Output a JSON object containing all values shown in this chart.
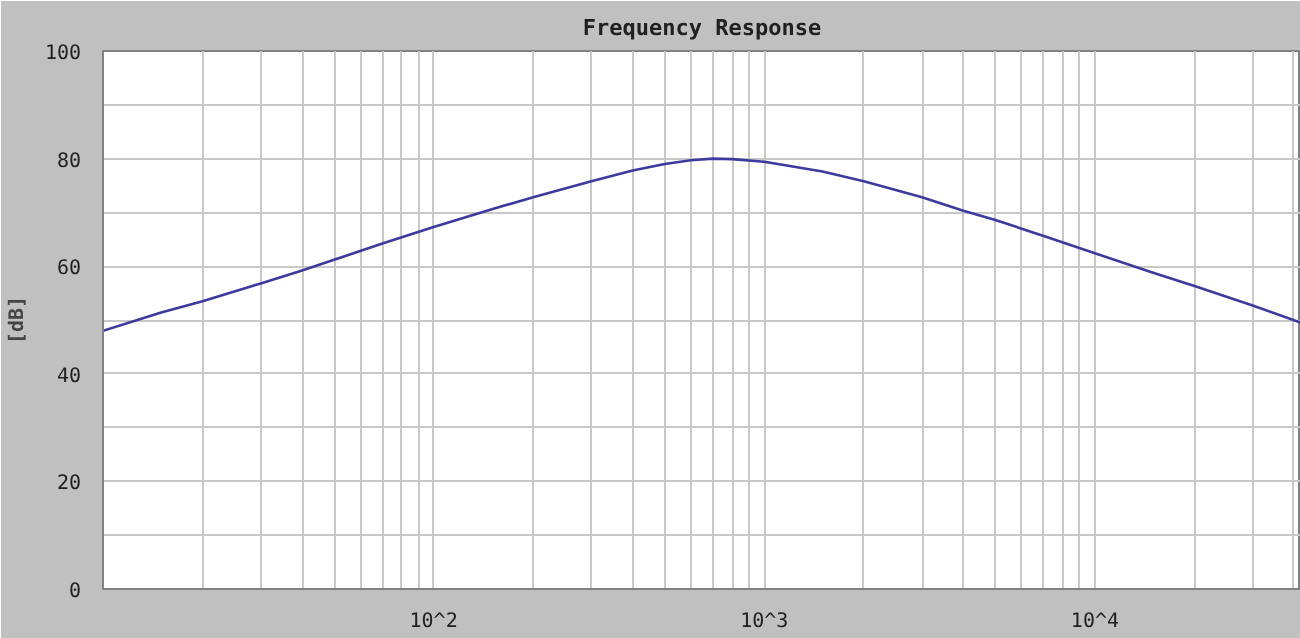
{
  "chart_data": {
    "type": "line",
    "title": "Frequency Response",
    "ylabel": "[dB]",
    "x": [
      10,
      15,
      20,
      30,
      40,
      50,
      70,
      100,
      150,
      200,
      300,
      400,
      500,
      600,
      700,
      800,
      1000,
      1500,
      2000,
      3000,
      4000,
      5000,
      7000,
      10000,
      15000,
      20000,
      30000,
      42000
    ],
    "series": [
      {
        "color": "#3b3b9e",
        "values": [
          48,
          51.4,
          53.5,
          56.8,
          59.2,
          61.2,
          64.2,
          67.3,
          70.6,
          72.8,
          75.8,
          77.8,
          79,
          79.7,
          80,
          79.9,
          79.4,
          77.6,
          75.8,
          72.8,
          70.3,
          68.6,
          65.6,
          62.4,
          58.8,
          56.3,
          52.7,
          49.5
        ]
      }
    ],
    "log": "x",
    "xlim": [
      10,
      42000
    ],
    "xticks": [
      {
        "value": 20,
        "label": null
      },
      {
        "value": 30,
        "label": null
      },
      {
        "value": 40,
        "label": null
      },
      {
        "value": 50,
        "label": null
      },
      {
        "value": 60,
        "label": null
      },
      {
        "value": 70,
        "label": null
      },
      {
        "value": 80,
        "label": null
      },
      {
        "value": 90,
        "label": null
      },
      {
        "value": 100,
        "label": "10^2"
      },
      {
        "value": 200,
        "label": null
      },
      {
        "value": 300,
        "label": null
      },
      {
        "value": 400,
        "label": null
      },
      {
        "value": 500,
        "label": null
      },
      {
        "value": 600,
        "label": null
      },
      {
        "value": 700,
        "label": null
      },
      {
        "value": 800,
        "label": null
      },
      {
        "value": 900,
        "label": null
      },
      {
        "value": 1000,
        "label": "10^3"
      },
      {
        "value": 2000,
        "label": null
      },
      {
        "value": 3000,
        "label": null
      },
      {
        "value": 4000,
        "label": null
      },
      {
        "value": 5000,
        "label": null
      },
      {
        "value": 6000,
        "label": null
      },
      {
        "value": 7000,
        "label": null
      },
      {
        "value": 8000,
        "label": null
      },
      {
        "value": 9000,
        "label": null
      },
      {
        "value": 10000,
        "label": "10^4"
      },
      {
        "value": 20000,
        "label": null
      },
      {
        "value": 30000,
        "label": null
      },
      {
        "value": 40000,
        "label": null
      }
    ],
    "ylim": [
      0,
      100
    ],
    "yticks": [
      0,
      {
        "value": 10,
        "label": null
      },
      20,
      {
        "value": 30,
        "label": null
      },
      40,
      {
        "value": 50,
        "label": null
      },
      60,
      {
        "value": 70,
        "label": null
      },
      80,
      {
        "value": 90,
        "label": null
      },
      100
    ],
    "grid": true,
    "line_style": "solid",
    "marker": "none"
  }
}
